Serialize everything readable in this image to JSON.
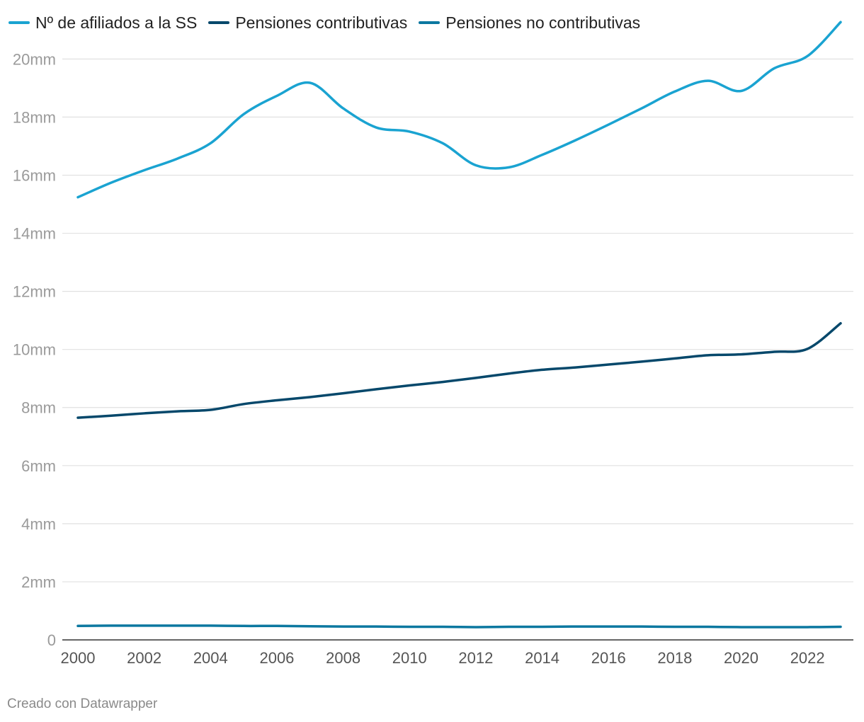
{
  "chart_data": {
    "type": "line",
    "title": "",
    "xlabel": "",
    "ylabel": "",
    "x": [
      2000,
      2001,
      2002,
      2003,
      2004,
      2005,
      2006,
      2007,
      2008,
      2009,
      2010,
      2011,
      2012,
      2013,
      2014,
      2015,
      2016,
      2017,
      2018,
      2019,
      2020,
      2021,
      2022,
      2023
    ],
    "xticks": [
      2000,
      2002,
      2004,
      2006,
      2008,
      2010,
      2012,
      2014,
      2016,
      2018,
      2020,
      2022
    ],
    "xtick_labels": [
      "2000",
      "2002",
      "2004",
      "2006",
      "2008",
      "2010",
      "2012",
      "2014",
      "2016",
      "2018",
      "2020",
      "2022"
    ],
    "xlim": [
      2000,
      2023
    ],
    "ylim": [
      0,
      21.3
    ],
    "yticks": [
      0,
      2,
      4,
      6,
      8,
      10,
      12,
      14,
      16,
      18,
      20
    ],
    "ytick_labels": [
      "0",
      "2mm",
      "4mm",
      "6mm",
      "8mm",
      "10mm",
      "12mm",
      "14mm",
      "16mm",
      "18mm",
      "20mm"
    ],
    "grid": true,
    "legend_position": "top-left",
    "series": [
      {
        "name": "Nº de afiliados a la SS",
        "color": "#1aa3d1",
        "values": [
          15.24,
          15.74,
          16.17,
          16.57,
          17.1,
          18.1,
          18.73,
          19.18,
          18.3,
          17.64,
          17.5,
          17.1,
          16.34,
          16.27,
          16.7,
          17.2,
          17.74,
          18.3,
          18.88,
          19.25,
          18.9,
          19.68,
          20.1,
          21.27
        ]
      },
      {
        "name": "Pensiones contributivas",
        "color": "#06486b",
        "values": [
          7.65,
          7.72,
          7.8,
          7.87,
          7.92,
          8.12,
          8.25,
          8.36,
          8.49,
          8.63,
          8.76,
          8.88,
          9.02,
          9.17,
          9.3,
          9.38,
          9.48,
          9.58,
          9.69,
          9.8,
          9.83,
          9.92,
          10.02,
          10.9
        ]
      },
      {
        "name": "Pensiones no contributivas",
        "color": "#0c78a0",
        "values": [
          0.48,
          0.49,
          0.49,
          0.49,
          0.49,
          0.48,
          0.48,
          0.47,
          0.46,
          0.46,
          0.45,
          0.45,
          0.44,
          0.45,
          0.45,
          0.46,
          0.46,
          0.46,
          0.45,
          0.45,
          0.44,
          0.44,
          0.44,
          0.45
        ]
      }
    ]
  },
  "footer": {
    "credit": "Creado con Datawrapper"
  }
}
